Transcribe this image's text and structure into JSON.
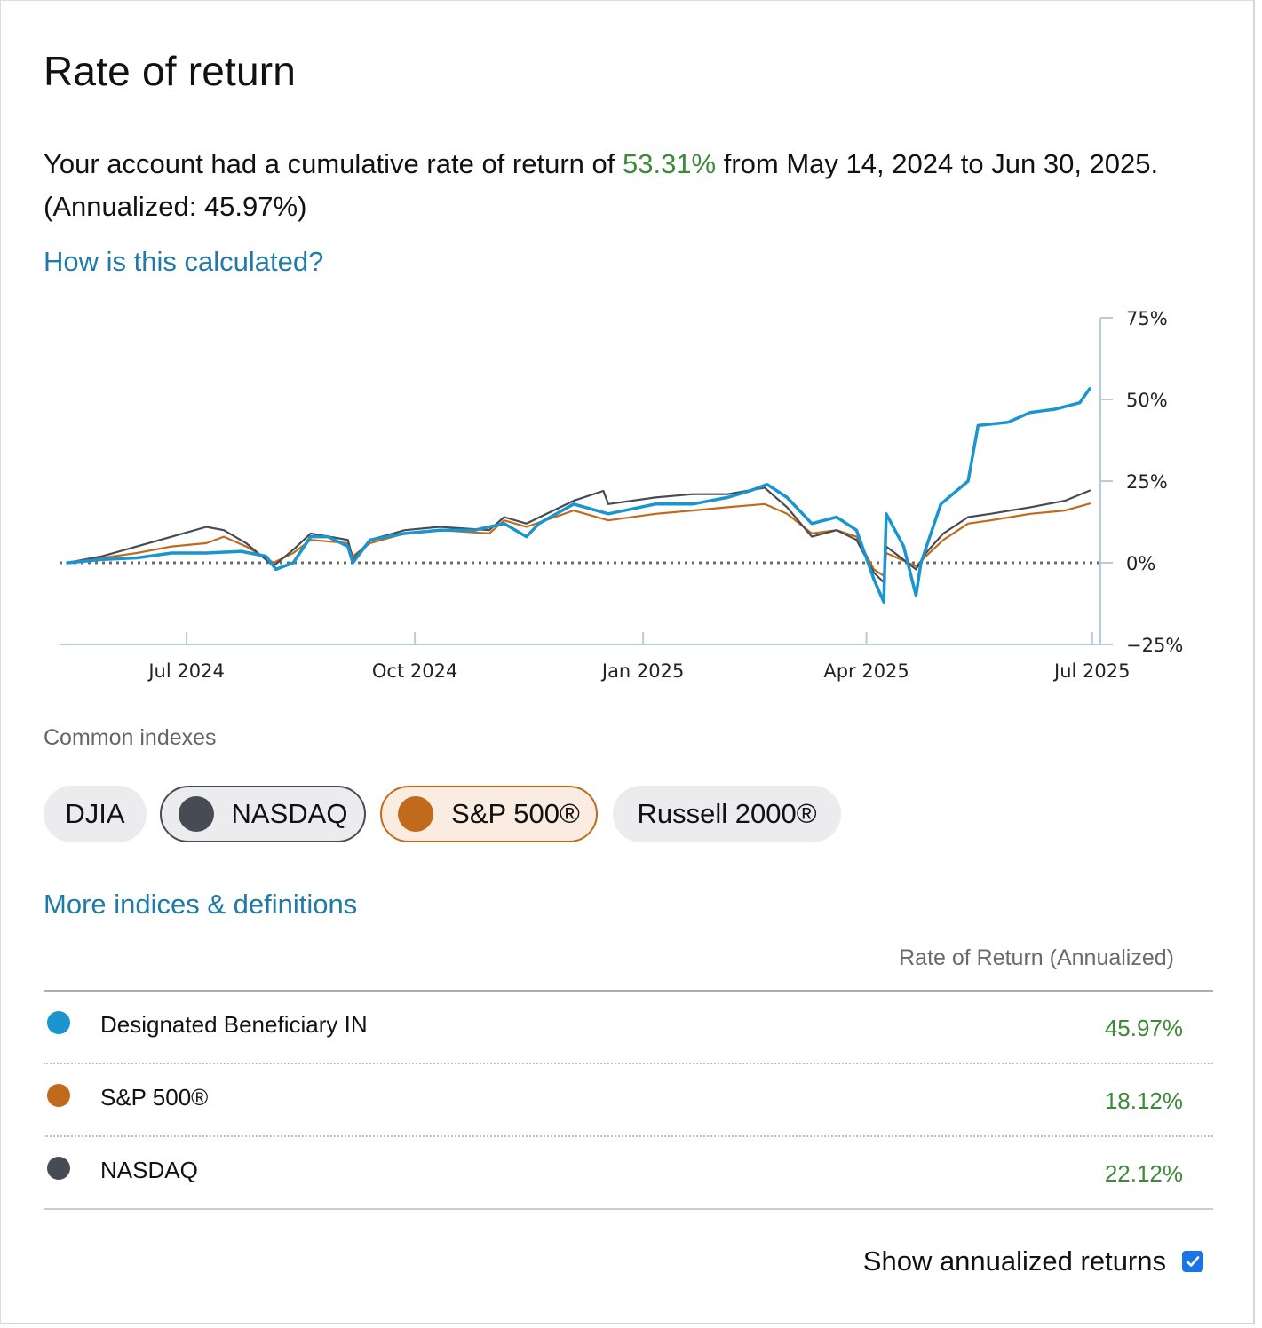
{
  "title": "Rate of return",
  "summary": {
    "prefix": "Your account had a cumulative rate of return of ",
    "cumulative": "53.31%",
    "middle": " from May 14, 2024 to Jun 30, 2025. (Annualized: 45.97%)"
  },
  "links": {
    "how_calculated": "How is this calculated?",
    "more_indices": "More indices & definitions"
  },
  "common_indexes_label": "Common indexes",
  "chips": [
    {
      "label": "DJIA",
      "selected": false
    },
    {
      "label": "NASDAQ",
      "selected": true,
      "color": "#474c54"
    },
    {
      "label": "S&P 500®",
      "selected": true,
      "color": "#c26a1b"
    },
    {
      "label": "Russell 2000®",
      "selected": false
    }
  ],
  "table": {
    "header": "Rate of Return (Annualized)",
    "rows": [
      {
        "name": "Designated Beneficiary IN",
        "value": "45.97%",
        "color": "#1a95d0"
      },
      {
        "name": "S&P 500®",
        "value": "18.12%",
        "color": "#c26a1b"
      },
      {
        "name": "NASDAQ",
        "value": "22.12%",
        "color": "#474c54"
      }
    ]
  },
  "show_annualized": {
    "label": "Show annualized returns",
    "checked": true
  },
  "chart_data": {
    "type": "line",
    "y_axis_position": "right",
    "yticks": [
      "75%",
      "50%",
      "25%",
      "0%",
      "−25%"
    ],
    "ytick_values": [
      75,
      50,
      25,
      0,
      -25
    ],
    "ylim": [
      -25,
      75
    ],
    "xlim": [
      "2024-05-14",
      "2025-06-30"
    ],
    "xticks": [
      {
        "label": "Jul 2024",
        "date": "2024-07-01"
      },
      {
        "label": "Oct 2024",
        "date": "2024-10-01"
      },
      {
        "label": "Jan 2025",
        "date": "2025-01-01"
      },
      {
        "label": "Apr 2025",
        "date": "2025-04-01"
      },
      {
        "label": "Jul 2025",
        "date": "2025-07-01"
      }
    ],
    "baseline": 0,
    "series": [
      {
        "name": "Designated Beneficiary IN",
        "color": "#1a95d0",
        "points": [
          [
            "2024-05-14",
            0
          ],
          [
            "2024-05-28",
            1
          ],
          [
            "2024-06-11",
            1.5
          ],
          [
            "2024-06-25",
            3
          ],
          [
            "2024-07-09",
            3
          ],
          [
            "2024-07-23",
            3.5
          ],
          [
            "2024-08-02",
            2
          ],
          [
            "2024-08-06",
            -2
          ],
          [
            "2024-08-13",
            0
          ],
          [
            "2024-08-20",
            8
          ],
          [
            "2024-08-27",
            8
          ],
          [
            "2024-09-04",
            5
          ],
          [
            "2024-09-06",
            0
          ],
          [
            "2024-09-13",
            7
          ],
          [
            "2024-09-27",
            9
          ],
          [
            "2024-10-11",
            10
          ],
          [
            "2024-10-25",
            10
          ],
          [
            "2024-11-06",
            12
          ],
          [
            "2024-11-15",
            8
          ],
          [
            "2024-11-20",
            12
          ],
          [
            "2024-12-04",
            18
          ],
          [
            "2024-12-18",
            15
          ],
          [
            "2025-01-06",
            18
          ],
          [
            "2025-01-21",
            18
          ],
          [
            "2025-02-04",
            20
          ],
          [
            "2025-02-13",
            22
          ],
          [
            "2025-02-20",
            24
          ],
          [
            "2025-02-28",
            20
          ],
          [
            "2025-03-10",
            12
          ],
          [
            "2025-03-20",
            14
          ],
          [
            "2025-03-28",
            10
          ],
          [
            "2025-04-04",
            -5
          ],
          [
            "2025-04-08",
            -12
          ],
          [
            "2025-04-09",
            15
          ],
          [
            "2025-04-16",
            5
          ],
          [
            "2025-04-21",
            -10
          ],
          [
            "2025-04-23",
            0
          ],
          [
            "2025-05-01",
            18
          ],
          [
            "2025-05-12",
            25
          ],
          [
            "2025-05-16",
            42
          ],
          [
            "2025-05-28",
            43
          ],
          [
            "2025-06-06",
            46
          ],
          [
            "2025-06-16",
            47
          ],
          [
            "2025-06-26",
            49
          ],
          [
            "2025-06-30",
            53.31
          ]
        ]
      },
      {
        "name": "S&P 500®",
        "color": "#c26a1b",
        "points": [
          [
            "2024-05-14",
            0
          ],
          [
            "2024-05-28",
            1.5
          ],
          [
            "2024-06-11",
            3
          ],
          [
            "2024-06-25",
            5
          ],
          [
            "2024-07-09",
            6
          ],
          [
            "2024-07-16",
            8
          ],
          [
            "2024-07-25",
            5
          ],
          [
            "2024-08-05",
            0
          ],
          [
            "2024-08-13",
            3
          ],
          [
            "2024-08-20",
            7
          ],
          [
            "2024-09-04",
            6
          ],
          [
            "2024-09-06",
            2
          ],
          [
            "2024-09-13",
            6
          ],
          [
            "2024-09-27",
            9
          ],
          [
            "2024-10-11",
            10
          ],
          [
            "2024-10-31",
            9
          ],
          [
            "2024-11-06",
            13
          ],
          [
            "2024-11-15",
            11
          ],
          [
            "2024-12-04",
            16
          ],
          [
            "2024-12-18",
            13
          ],
          [
            "2025-01-06",
            15
          ],
          [
            "2025-01-21",
            16
          ],
          [
            "2025-02-04",
            17
          ],
          [
            "2025-02-19",
            18
          ],
          [
            "2025-02-28",
            15
          ],
          [
            "2025-03-10",
            9
          ],
          [
            "2025-03-20",
            10
          ],
          [
            "2025-03-28",
            8
          ],
          [
            "2025-04-04",
            -2
          ],
          [
            "2025-04-08",
            -4
          ],
          [
            "2025-04-09",
            3
          ],
          [
            "2025-04-21",
            -1
          ],
          [
            "2025-04-25",
            2
          ],
          [
            "2025-05-02",
            7
          ],
          [
            "2025-05-12",
            12
          ],
          [
            "2025-05-21",
            13
          ],
          [
            "2025-06-06",
            15
          ],
          [
            "2025-06-20",
            16
          ],
          [
            "2025-06-30",
            18.12
          ]
        ]
      },
      {
        "name": "NASDAQ",
        "color": "#474c54",
        "points": [
          [
            "2024-05-14",
            0
          ],
          [
            "2024-05-28",
            2
          ],
          [
            "2024-06-11",
            5
          ],
          [
            "2024-06-25",
            8
          ],
          [
            "2024-07-09",
            11
          ],
          [
            "2024-07-16",
            10
          ],
          [
            "2024-07-25",
            6
          ],
          [
            "2024-08-05",
            -1
          ],
          [
            "2024-08-13",
            4
          ],
          [
            "2024-08-20",
            9
          ],
          [
            "2024-09-04",
            7
          ],
          [
            "2024-09-06",
            1
          ],
          [
            "2024-09-13",
            7
          ],
          [
            "2024-09-27",
            10
          ],
          [
            "2024-10-11",
            11
          ],
          [
            "2024-10-31",
            10
          ],
          [
            "2024-11-06",
            14
          ],
          [
            "2024-11-15",
            12
          ],
          [
            "2024-12-04",
            19
          ],
          [
            "2024-12-16",
            22
          ],
          [
            "2024-12-18",
            18
          ],
          [
            "2025-01-06",
            20
          ],
          [
            "2025-01-21",
            21
          ],
          [
            "2025-02-04",
            21
          ],
          [
            "2025-02-19",
            23
          ],
          [
            "2025-02-28",
            17
          ],
          [
            "2025-03-10",
            8
          ],
          [
            "2025-03-20",
            10
          ],
          [
            "2025-03-28",
            7
          ],
          [
            "2025-04-04",
            -3
          ],
          [
            "2025-04-08",
            -6
          ],
          [
            "2025-04-09",
            5
          ],
          [
            "2025-04-21",
            -2
          ],
          [
            "2025-04-25",
            3
          ],
          [
            "2025-05-02",
            9
          ],
          [
            "2025-05-12",
            14
          ],
          [
            "2025-05-21",
            15
          ],
          [
            "2025-06-06",
            17
          ],
          [
            "2025-06-20",
            19
          ],
          [
            "2025-06-30",
            22.12
          ]
        ]
      }
    ]
  }
}
